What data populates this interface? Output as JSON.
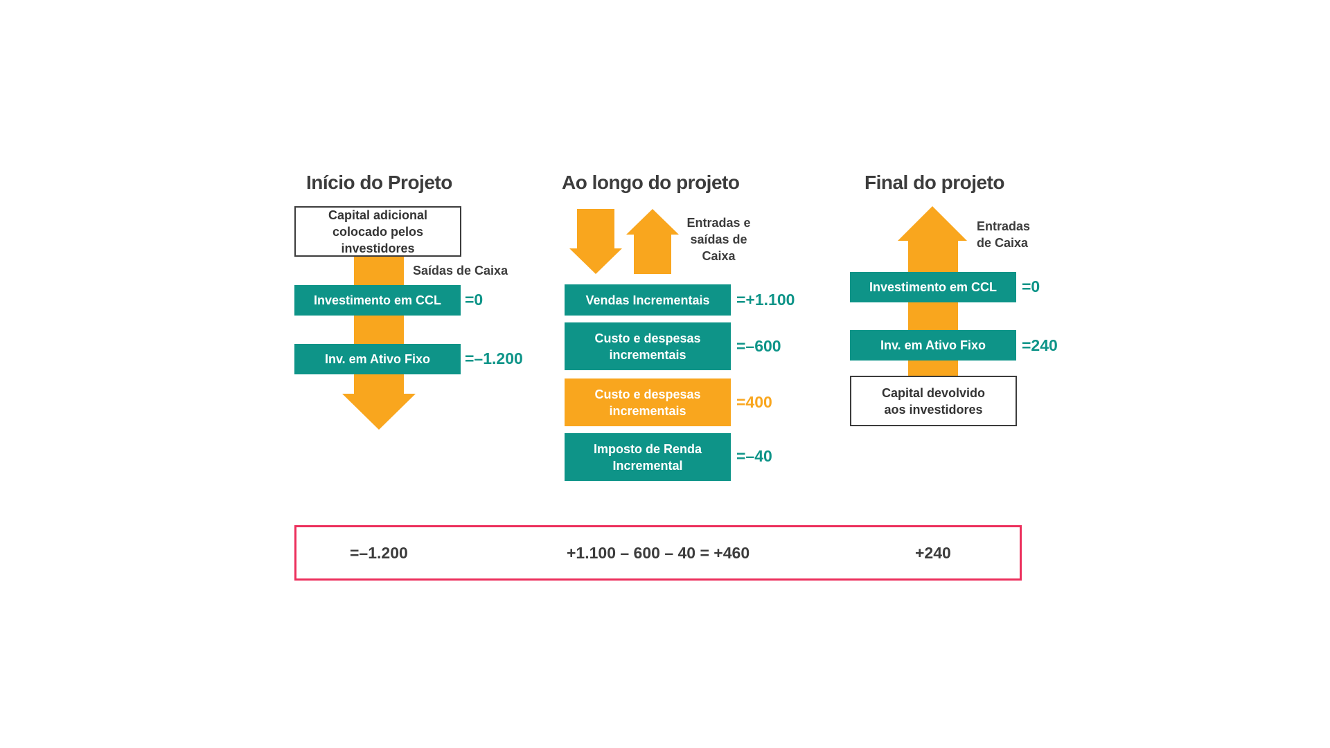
{
  "headings": {
    "inicio": "Início do Projeto",
    "ao_longo": "Ao longo do projeto",
    "final": "Final do projeto"
  },
  "inicio": {
    "capital_box": "Capital adicional colocado pelos investidores",
    "saidas_label": "Saídas de Caixa",
    "investimento_ccl": {
      "label": "Investimento em CCL",
      "value": "=0"
    },
    "ativo_fixo": {
      "label": "Inv. em Ativo Fixo",
      "value": "=–1.200"
    }
  },
  "ao_longo": {
    "arrows_label": "Entradas e saídas de Caixa",
    "vendas": {
      "label": "Vendas Incrementais",
      "value": "=+1.100"
    },
    "custo_teal": {
      "label": "Custo e despesas incrementais",
      "value": "=–600"
    },
    "custo_orange": {
      "label": "Custo e despesas incrementais",
      "value": "=400"
    },
    "imposto": {
      "label": "Imposto de Renda Incremental",
      "value": "=–40"
    }
  },
  "final": {
    "entradas_label": "Entradas de Caixa",
    "investimento_ccl": {
      "label": "Investimento em CCL",
      "value": "=0"
    },
    "ativo_fixo": {
      "label": "Inv. em Ativo Fixo",
      "value": "=240"
    },
    "capital_box": "Capital devolvido aos investidores"
  },
  "summary": {
    "inicio": "=–1.200",
    "ao_longo": "+1.100 – 600 – 40 = +460",
    "final": "+240"
  },
  "colors": {
    "teal": "#0e9488",
    "orange": "#f9a61e",
    "summary_border": "#ec2f5c",
    "text": "#3c3c3c"
  }
}
